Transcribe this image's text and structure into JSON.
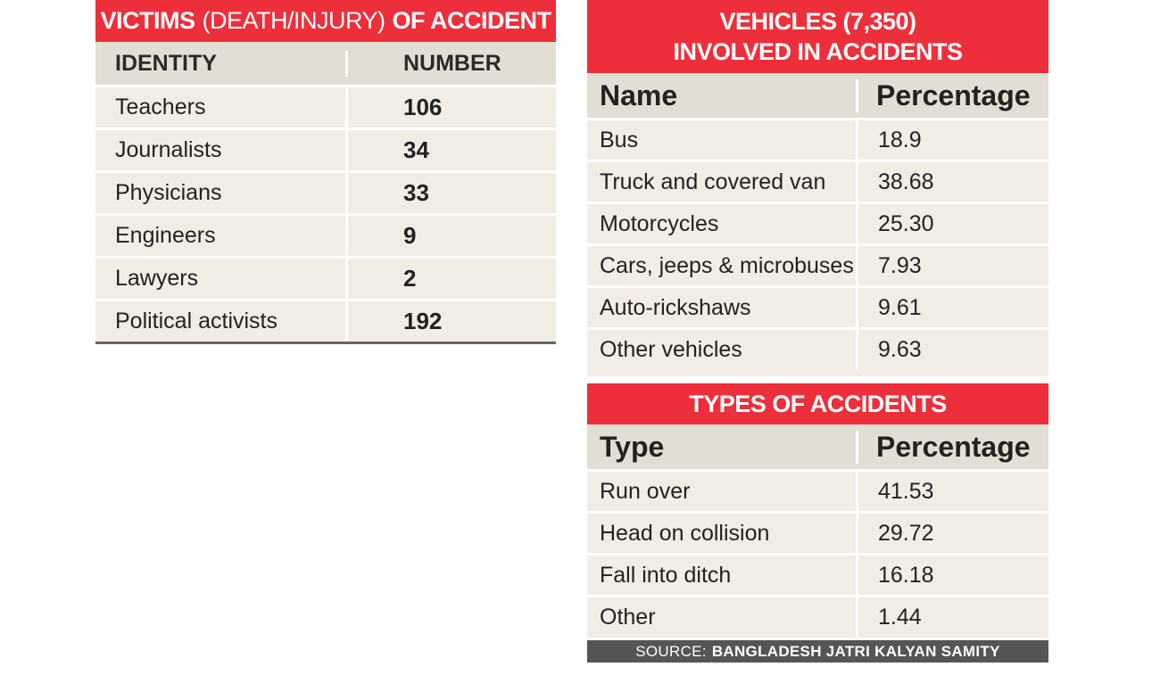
{
  "chart_data": [
    {
      "type": "table",
      "title_bold_1": "VICTIMS",
      "title_light": "(DEATH/INJURY)",
      "title_bold_2": "OF ACCIDENT",
      "columns": [
        "IDENTITY",
        "NUMBER"
      ],
      "rows": [
        {
          "label": "Teachers",
          "value": "106"
        },
        {
          "label": "Journalists",
          "value": "34"
        },
        {
          "label": "Physicians",
          "value": "33"
        },
        {
          "label": "Engineers",
          "value": "9"
        },
        {
          "label": "Lawyers",
          "value": "2"
        },
        {
          "label": "Political activists",
          "value": "192"
        }
      ]
    },
    {
      "type": "table",
      "title_line1": "VEHICLES (7,350)",
      "title_line2": "INVOLVED IN ACCIDENTS",
      "columns": [
        "Name",
        "Percentage"
      ],
      "rows": [
        {
          "label": "Bus",
          "value": "18.9"
        },
        {
          "label": "Truck and covered van",
          "value": "38.68"
        },
        {
          "label": "Motorcycles",
          "value": "25.30"
        },
        {
          "label": "Cars, jeeps & microbuses",
          "value": "7.93"
        },
        {
          "label": "Auto-rickshaws",
          "value": "9.61"
        },
        {
          "label": "Other vehicles",
          "value": "9.63"
        }
      ]
    },
    {
      "type": "table",
      "title": "TYPES OF ACCIDENTS",
      "columns": [
        "Type",
        "Percentage"
      ],
      "rows": [
        {
          "label": "Run over",
          "value": "41.53"
        },
        {
          "label": "Head on collision",
          "value": "29.72"
        },
        {
          "label": "Fall into ditch",
          "value": "16.18"
        },
        {
          "label": "Other",
          "value": "1.44"
        }
      ]
    }
  ],
  "source": {
    "prefix": "SOURCE:",
    "name": "BANGLADESH JATRI KALYAN SAMITY"
  },
  "colors": {
    "title_red": "#ed2f3b",
    "row_bg": "#f1ede5",
    "header_bg": "#e3ded3",
    "source_bg": "#555555"
  }
}
